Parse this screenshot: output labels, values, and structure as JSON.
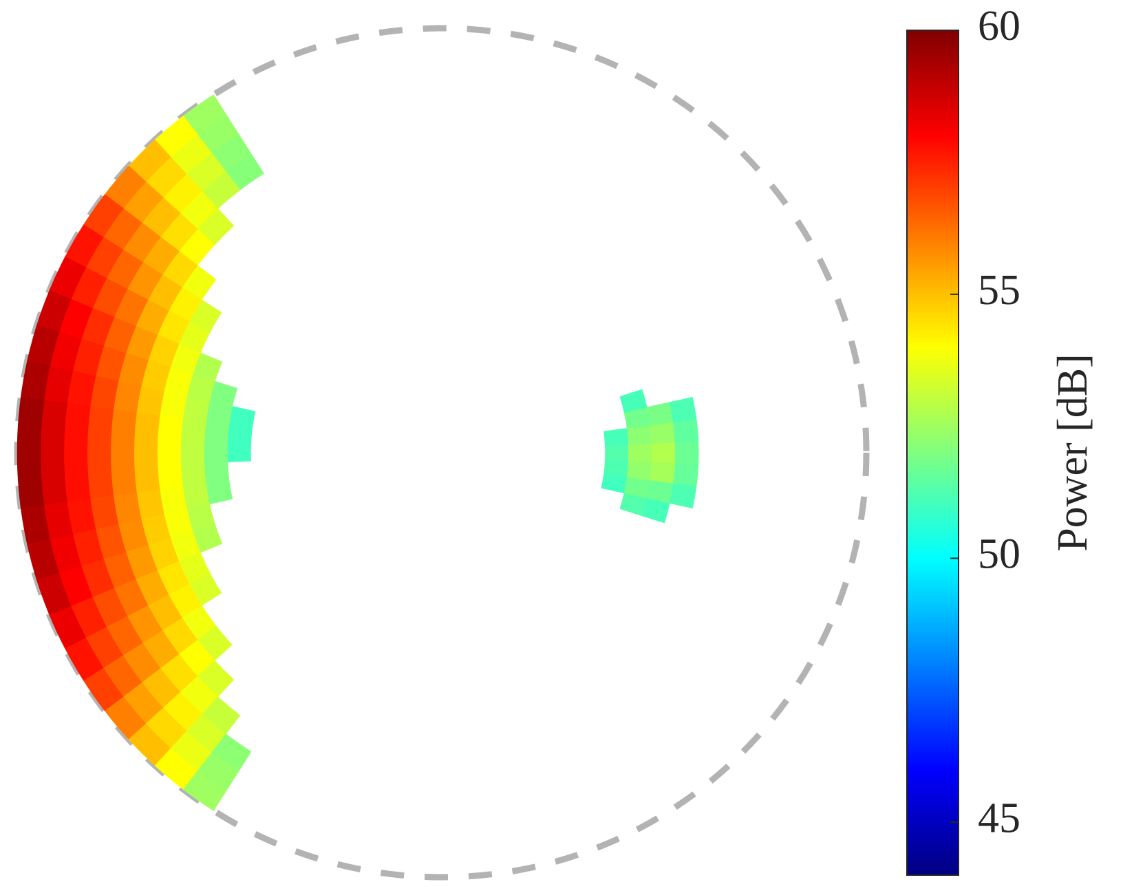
{
  "chart_data": {
    "type": "polar_heatmap",
    "colormap": "jet",
    "clim": [
      44,
      60
    ],
    "cticks": [
      45,
      50,
      55,
      60
    ],
    "colorbar_label": "Power [dB]",
    "rlim": [
      0,
      1
    ],
    "regions": [
      {
        "theta_edges": [
          122.5,
          127.5,
          132.5,
          137.5,
          142.5,
          147.5,
          152.5,
          157.5,
          162.5,
          167.5,
          172.5,
          177.5,
          182.5,
          187.5,
          192.5,
          197.5,
          202.5,
          207.5,
          212.5,
          217.5,
          222.5,
          227.5,
          232.5,
          237.5
        ],
        "r_edges": [
          0.45,
          0.505,
          0.56,
          0.615,
          0.67,
          0.725,
          0.78,
          0.835,
          0.89,
          0.945,
          1.0
        ],
        "values": [
          [
            null,
            null,
            null,
            null,
            null,
            null,
            52.1,
            52.2,
            52.4,
            52.5
          ],
          [
            null,
            null,
            null,
            null,
            null,
            null,
            53.1,
            53.4,
            53.7,
            54.0
          ],
          [
            null,
            null,
            null,
            null,
            null,
            53.4,
            53.8,
            54.2,
            54.6,
            55.0
          ],
          [
            null,
            null,
            null,
            null,
            null,
            54.0,
            54.5,
            55.0,
            55.5,
            56.0
          ],
          [
            null,
            null,
            null,
            null,
            53.8,
            54.6,
            55.3,
            55.8,
            56.4,
            57.0
          ],
          [
            null,
            null,
            null,
            53.4,
            54.2,
            55.0,
            55.7,
            56.4,
            57.0,
            57.7
          ],
          [
            null,
            null,
            null,
            53.6,
            54.4,
            55.3,
            56.2,
            56.8,
            57.5,
            58.3
          ],
          [
            null,
            null,
            52.8,
            53.8,
            54.7,
            55.6,
            56.5,
            57.3,
            58.0,
            58.8
          ],
          [
            null,
            52.0,
            52.9,
            53.9,
            54.8,
            55.8,
            56.7,
            57.5,
            58.2,
            59.1
          ],
          [
            51.0,
            52.0,
            53.0,
            53.9,
            54.9,
            55.9,
            56.9,
            57.7,
            58.4,
            59.3
          ],
          [
            51.0,
            52.0,
            53.0,
            54.0,
            55.0,
            56.0,
            57.0,
            57.8,
            58.6,
            59.5
          ],
          [
            51.0,
            52.0,
            53.0,
            54.0,
            55.0,
            56.0,
            57.0,
            57.8,
            58.6,
            59.5
          ],
          [
            null,
            52.0,
            53.0,
            54.0,
            55.0,
            56.0,
            57.0,
            57.8,
            58.6,
            59.5
          ],
          [
            null,
            52.0,
            53.0,
            53.9,
            54.9,
            55.9,
            56.9,
            57.7,
            58.4,
            59.3
          ],
          [
            null,
            null,
            52.9,
            53.9,
            54.8,
            55.8,
            56.7,
            57.5,
            58.2,
            59.1
          ],
          [
            null,
            null,
            52.8,
            53.8,
            54.7,
            55.6,
            56.5,
            57.3,
            58.0,
            58.8
          ],
          [
            null,
            null,
            null,
            53.6,
            54.4,
            55.3,
            56.2,
            56.8,
            57.5,
            58.3
          ],
          [
            null,
            null,
            null,
            53.4,
            54.2,
            55.0,
            55.7,
            56.4,
            57.0,
            57.7
          ],
          [
            null,
            null,
            null,
            null,
            53.8,
            54.6,
            55.3,
            55.8,
            56.4,
            57.0
          ],
          [
            null,
            null,
            null,
            null,
            53.4,
            54.0,
            54.5,
            55.0,
            55.5,
            56.0
          ],
          [
            null,
            null,
            null,
            null,
            null,
            53.4,
            53.8,
            54.2,
            54.6,
            55.0
          ],
          [
            null,
            null,
            null,
            null,
            null,
            null,
            53.1,
            53.4,
            53.7,
            54.0
          ],
          [
            null,
            null,
            null,
            null,
            null,
            null,
            null,
            52.2,
            52.4,
            52.5
          ]
        ]
      },
      {
        "theta_edges": [
          -17.5,
          -12.5,
          -7.5,
          -2.5,
          2.5,
          7.5,
          12.5,
          17.5
        ],
        "r_edges": [
          0.385,
          0.44,
          0.495,
          0.55,
          0.605
        ],
        "values": [
          [
            null,
            51.3,
            51.1,
            null
          ],
          [
            51.0,
            51.8,
            51.7,
            51.2
          ],
          [
            51.2,
            52.3,
            52.6,
            51.6
          ],
          [
            51.3,
            52.5,
            52.8,
            51.7
          ],
          [
            51.1,
            52.2,
            52.4,
            51.5
          ],
          [
            null,
            51.8,
            51.9,
            51.2
          ],
          [
            null,
            51.1,
            null,
            null
          ]
        ]
      }
    ]
  }
}
